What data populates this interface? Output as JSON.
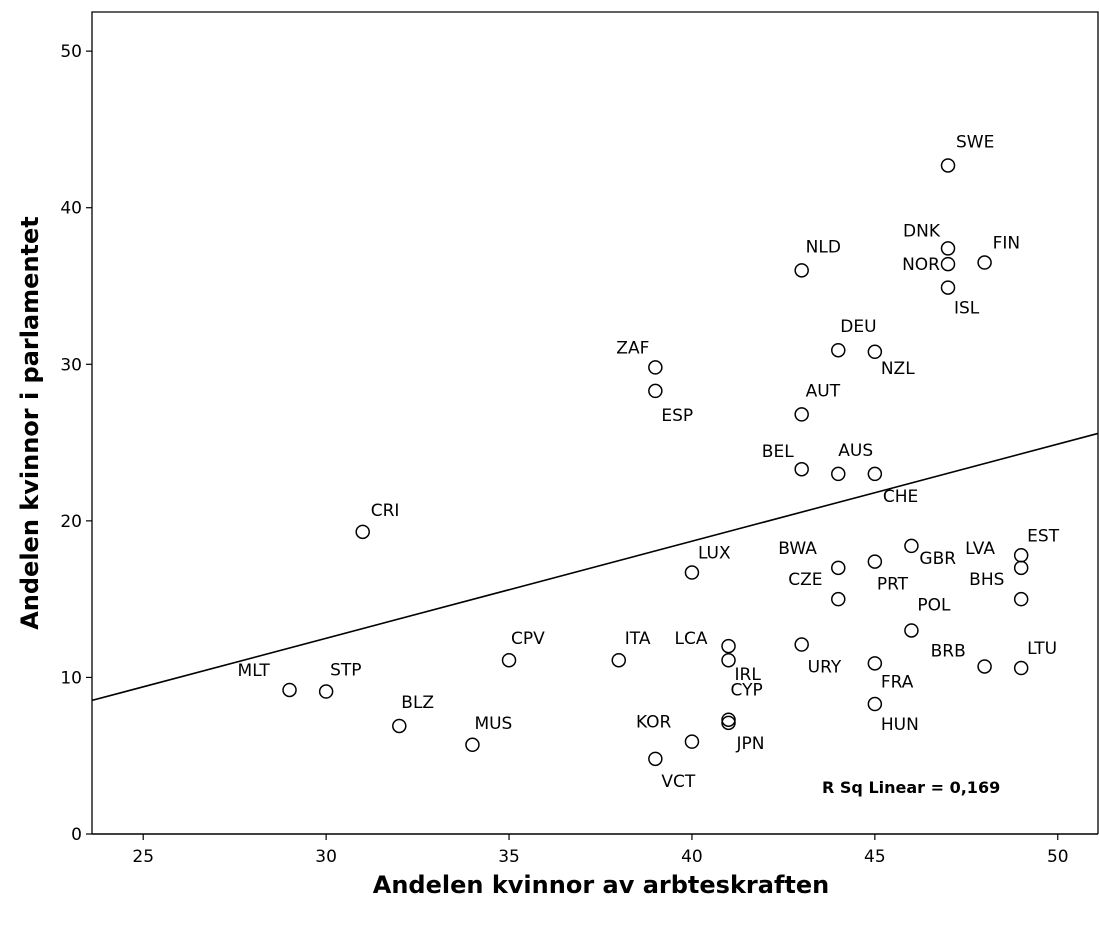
{
  "chart_data": {
    "type": "scatter",
    "title": "",
    "xlabel": "Andelen kvinnor av arbteskraften",
    "ylabel": "Andelen kvinnor i parlamentet",
    "xlim": [
      23.6,
      51.1
    ],
    "ylim": [
      0,
      52.5
    ],
    "x_ticks": [
      25,
      30,
      35,
      40,
      45,
      50
    ],
    "y_ticks": [
      0,
      10,
      20,
      30,
      40,
      50
    ],
    "grid": false,
    "fit_line": {
      "label": "R Sq Linear = 0,169",
      "intercept": -6.1,
      "slope": 0.62
    },
    "points": [
      {
        "label": "SWE",
        "x": 47,
        "y": 42.7
      },
      {
        "label": "DNK",
        "x": 47,
        "y": 37.4
      },
      {
        "label": "FIN",
        "x": 48,
        "y": 36.5
      },
      {
        "label": "NOR",
        "x": 47,
        "y": 36.4
      },
      {
        "label": "ISL",
        "x": 47,
        "y": 34.9
      },
      {
        "label": "NLD",
        "x": 43,
        "y": 36.0
      },
      {
        "label": "DEU",
        "x": 44,
        "y": 30.9
      },
      {
        "label": "NZL",
        "x": 45,
        "y": 30.8
      },
      {
        "label": "ZAF",
        "x": 39,
        "y": 29.8
      },
      {
        "label": "ESP",
        "x": 39,
        "y": 28.3
      },
      {
        "label": "AUT",
        "x": 43,
        "y": 26.8
      },
      {
        "label": "BEL",
        "x": 43,
        "y": 23.3
      },
      {
        "label": "AUS",
        "x": 44,
        "y": 23.0
      },
      {
        "label": "CHE",
        "x": 45,
        "y": 23.0
      },
      {
        "label": "CRI",
        "x": 31,
        "y": 19.3
      },
      {
        "label": "GBR",
        "x": 46,
        "y": 18.4
      },
      {
        "label": "EST",
        "x": 49,
        "y": 17.8
      },
      {
        "label": "LVA",
        "x": 49,
        "y": 17.0
      },
      {
        "label": "PRT",
        "x": 45,
        "y": 17.4
      },
      {
        "label": "BWA",
        "x": 44,
        "y": 17.0
      },
      {
        "label": "LUX",
        "x": 40,
        "y": 16.7
      },
      {
        "label": "BHS",
        "x": 49,
        "y": 15.0
      },
      {
        "label": "CZE",
        "x": 44,
        "y": 15.0
      },
      {
        "label": "POL",
        "x": 46,
        "y": 13.0
      },
      {
        "label": "LCA",
        "x": 41,
        "y": 12.0
      },
      {
        "label": "URY",
        "x": 43,
        "y": 12.1
      },
      {
        "label": "ITA",
        "x": 38,
        "y": 11.1
      },
      {
        "label": "CPV",
        "x": 35,
        "y": 11.1
      },
      {
        "label": "IRL",
        "x": 41,
        "y": 11.1
      },
      {
        "label": "FRA",
        "x": 45,
        "y": 10.9
      },
      {
        "label": "BRB",
        "x": 48,
        "y": 10.7
      },
      {
        "label": "LTU",
        "x": 49,
        "y": 10.6
      },
      {
        "label": "MLT",
        "x": 29,
        "y": 9.2
      },
      {
        "label": "STP",
        "x": 30,
        "y": 9.1
      },
      {
        "label": "HUN",
        "x": 45,
        "y": 8.3
      },
      {
        "label": "CYP",
        "x": 41,
        "y": 7.3
      },
      {
        "label": "JPN",
        "x": 41,
        "y": 7.1
      },
      {
        "label": "BLZ",
        "x": 32,
        "y": 6.9
      },
      {
        "label": "KOR",
        "x": 40,
        "y": 5.9
      },
      {
        "label": "MUS",
        "x": 34,
        "y": 5.7
      },
      {
        "label": "VCT",
        "x": 39,
        "y": 4.8
      }
    ]
  }
}
